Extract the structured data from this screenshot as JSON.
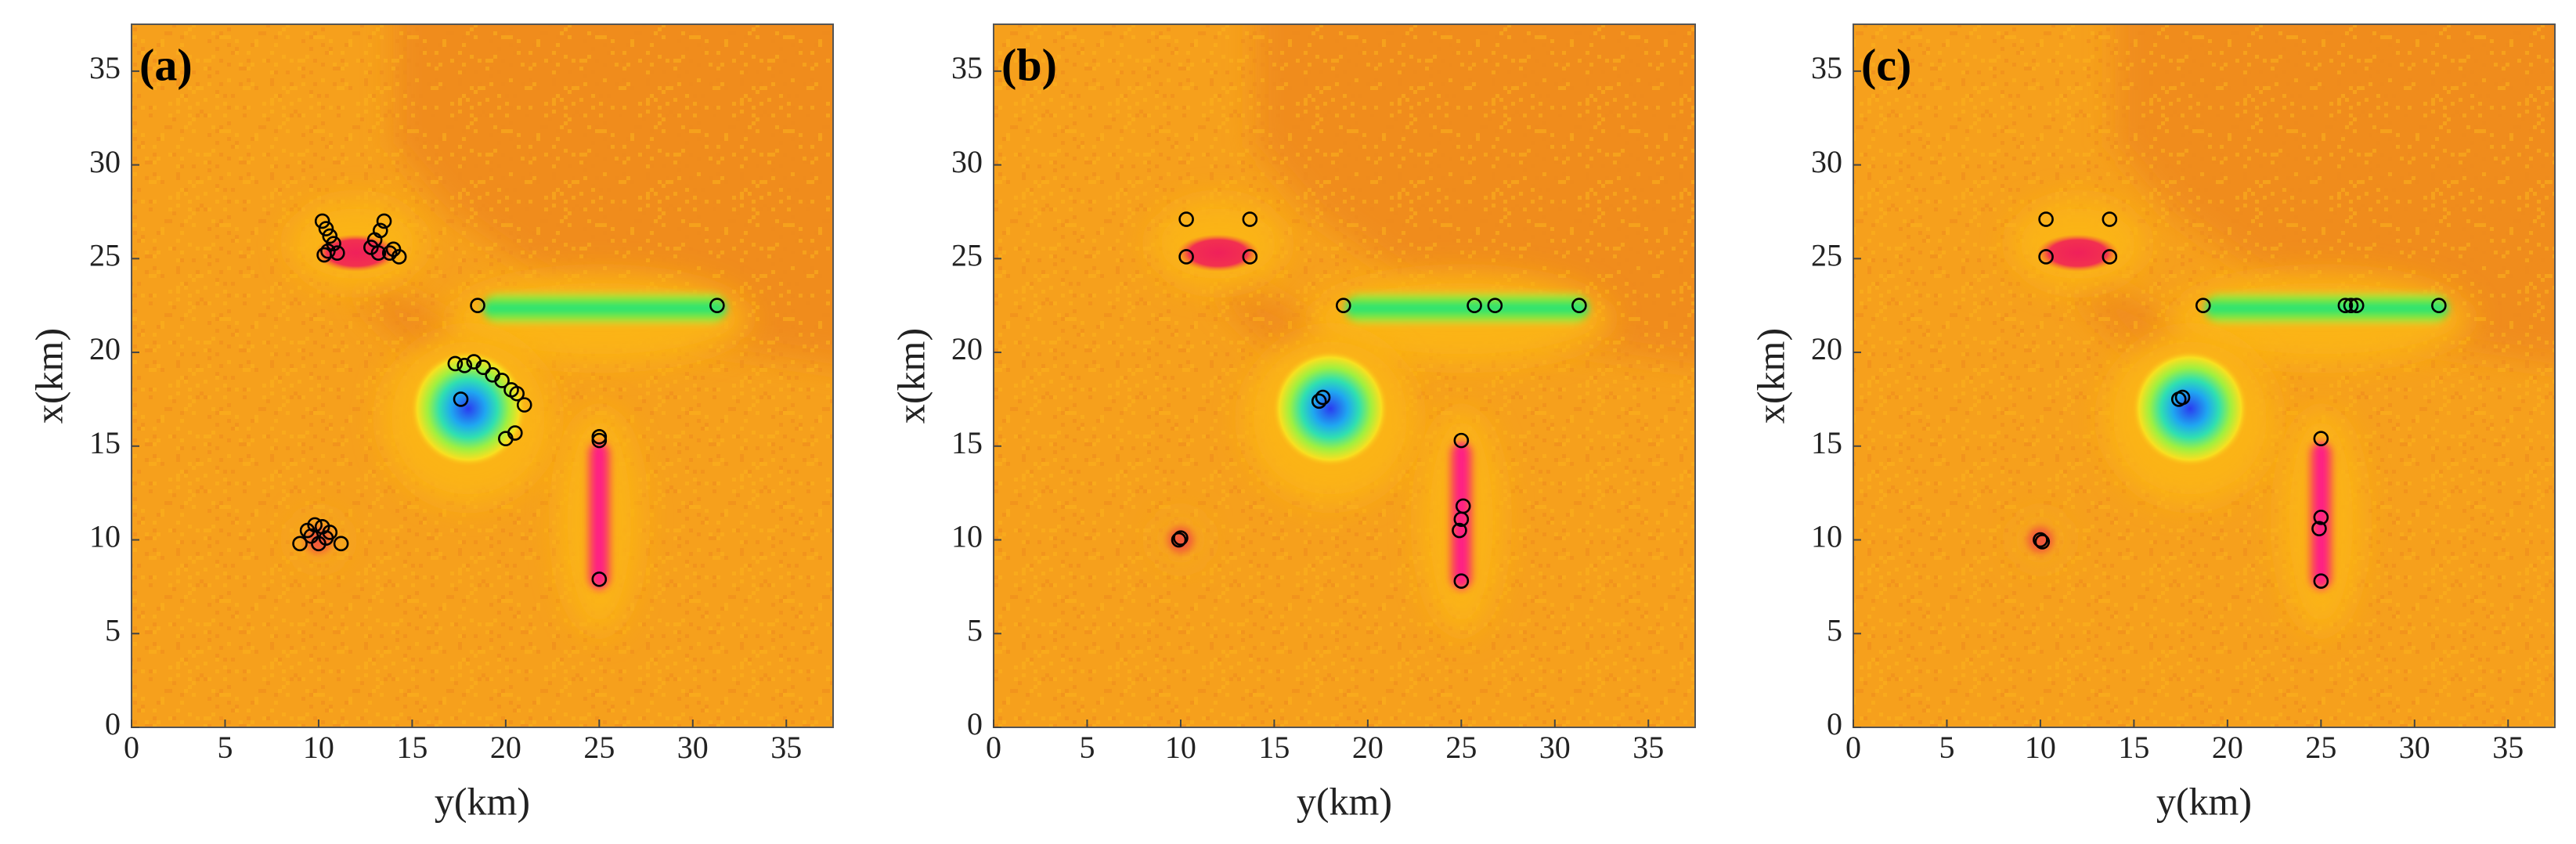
{
  "chart_data": [
    {
      "type": "scatter",
      "title": "(a)",
      "x_label": "y(km)",
      "y_label": "x(km)",
      "color": "#000000",
      "x": [
        10.2,
        10.4,
        10.6,
        10.8,
        10.5,
        11.0,
        10.3,
        13.5,
        13.3,
        13.0,
        12.8,
        13.2,
        13.8,
        14.3,
        14.0,
        18.5,
        31.3,
        17.3,
        17.8,
        18.3,
        18.8,
        19.3,
        19.8,
        20.3,
        20.6,
        21.0,
        20.5,
        20.0,
        17.6,
        25.0,
        25.0,
        25.0,
        9.0,
        9.4,
        9.8,
        10.2,
        10.6,
        11.2,
        10.0,
        10.4,
        9.6
      ],
      "values": [
        27.0,
        26.6,
        26.2,
        25.8,
        25.4,
        25.3,
        25.2,
        27.0,
        26.5,
        26.0,
        25.6,
        25.3,
        25.3,
        25.1,
        25.5,
        22.5,
        22.5,
        19.4,
        19.3,
        19.5,
        19.2,
        18.8,
        18.5,
        18.0,
        17.8,
        17.2,
        15.7,
        15.4,
        17.5,
        15.5,
        15.3,
        7.9,
        9.8,
        10.5,
        10.8,
        10.7,
        10.4,
        9.8,
        9.8,
        10.1,
        10.2
      ],
      "xlim": [
        0,
        37.5
      ],
      "ylim": [
        0,
        37.5
      ],
      "xticks": [
        0,
        5,
        10,
        15,
        20,
        25,
        30,
        35
      ],
      "yticks": [
        0,
        5,
        10,
        15,
        20,
        25,
        30,
        35
      ]
    },
    {
      "type": "scatter",
      "title": "(b)",
      "x_label": "y(km)",
      "y_label": "x(km)",
      "color": "#000000",
      "x": [
        10.3,
        13.7,
        10.3,
        13.7,
        18.7,
        25.7,
        26.8,
        31.3,
        17.6,
        17.4,
        10.0,
        9.9,
        25.0,
        25.1,
        24.9,
        25.0,
        25.0
      ],
      "values": [
        27.1,
        27.1,
        25.1,
        25.1,
        22.5,
        22.5,
        22.5,
        22.5,
        17.6,
        17.4,
        10.1,
        10.0,
        15.3,
        11.8,
        10.5,
        11.1,
        7.8
      ],
      "xlim": [
        0,
        37.5
      ],
      "ylim": [
        0,
        37.5
      ],
      "xticks": [
        0,
        5,
        10,
        15,
        20,
        25,
        30,
        35
      ],
      "yticks": [
        0,
        5,
        10,
        15,
        20,
        25,
        30,
        35
      ]
    },
    {
      "type": "scatter",
      "title": "(c)",
      "x_label": "y(km)",
      "y_label": "x(km)",
      "color": "#000000",
      "x": [
        10.3,
        13.7,
        10.3,
        13.7,
        18.7,
        26.3,
        26.6,
        26.9,
        31.3,
        17.6,
        17.4,
        10.0,
        10.1,
        25.0,
        25.0,
        24.9,
        25.0
      ],
      "values": [
        27.1,
        27.1,
        25.1,
        25.1,
        22.5,
        22.5,
        22.5,
        22.5,
        22.5,
        17.6,
        17.5,
        10.0,
        9.9,
        15.4,
        11.2,
        10.6,
        7.8
      ],
      "xlim": [
        0,
        37.5
      ],
      "ylim": [
        0,
        37.5
      ],
      "xticks": [
        0,
        5,
        10,
        15,
        20,
        25,
        30,
        35
      ],
      "yticks": [
        0,
        5,
        10,
        15,
        20,
        25,
        30,
        35
      ]
    }
  ]
}
